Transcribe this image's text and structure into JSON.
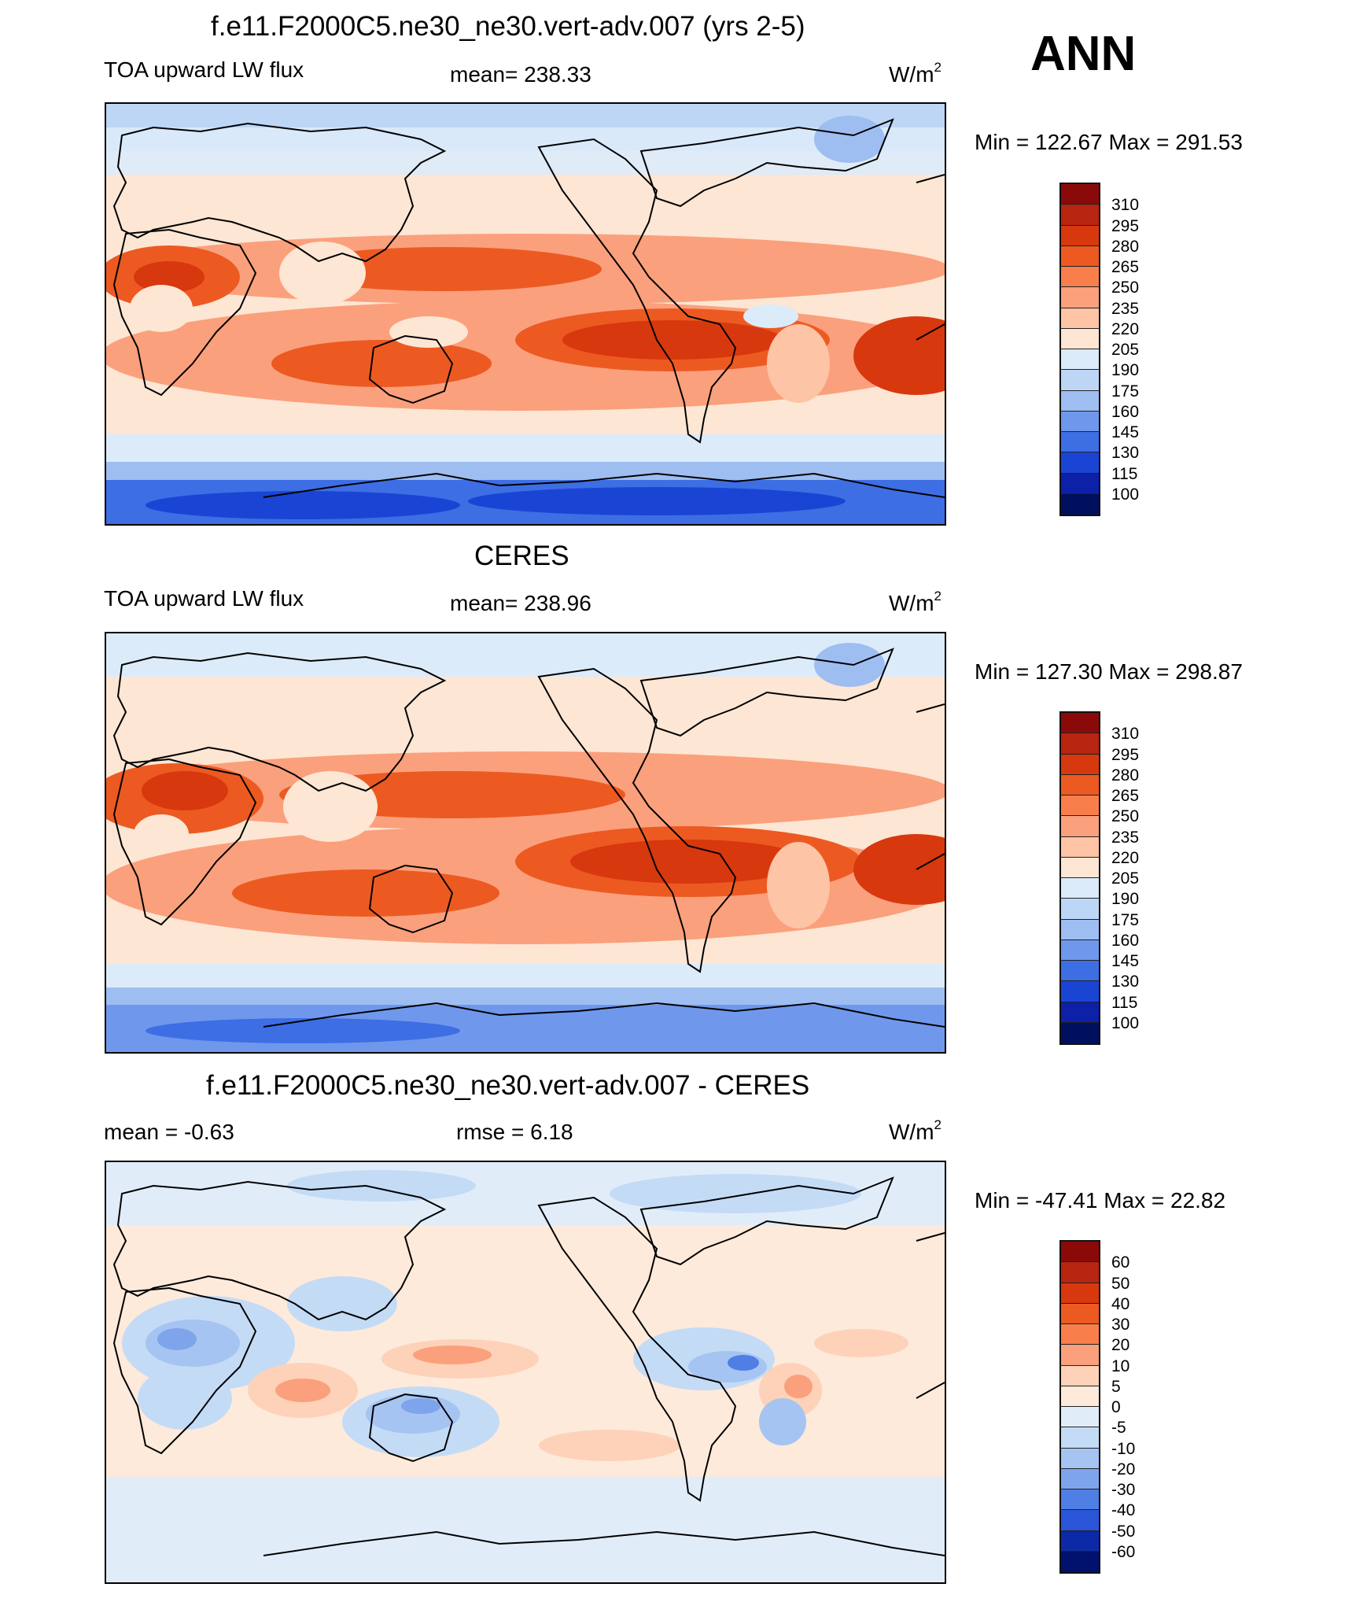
{
  "big_label": "ANN",
  "unit_text": "W/m",
  "unit_sup": "2",
  "panels": [
    {
      "title": "f.e11.F2000C5.ne30_ne30.vert-adv.007 (yrs 2-5)",
      "left_label": "TOA upward LW flux",
      "center_label": "mean= 238.33",
      "minmax": "Min = 122.67 Max = 291.53",
      "levels": [
        "310",
        "295",
        "280",
        "265",
        "250",
        "235",
        "220",
        "205",
        "190",
        "175",
        "160",
        "145",
        "130",
        "115",
        "100"
      ]
    },
    {
      "title": "CERES",
      "left_label": "TOA upward LW flux",
      "center_label": "mean= 238.96",
      "minmax": "Min = 127.30 Max = 298.87",
      "levels": [
        "310",
        "295",
        "280",
        "265",
        "250",
        "235",
        "220",
        "205",
        "190",
        "175",
        "160",
        "145",
        "130",
        "115",
        "100"
      ]
    },
    {
      "title": "f.e11.F2000C5.ne30_ne30.vert-adv.007 - CERES",
      "left_label": "mean =  -0.63",
      "center_label": "rmse =   6.18",
      "minmax": "Min = -47.41 Max =  22.82",
      "levels": [
        "60",
        "50",
        "40",
        "30",
        "20",
        "10",
        "5",
        "0",
        "-5",
        "-10",
        "-20",
        "-30",
        "-40",
        "-50",
        "-60"
      ]
    }
  ],
  "colors": {
    "flux_scale": [
      "#8a0a0a",
      "#b82510",
      "#d8380e",
      "#ec5a22",
      "#f87e4c",
      "#fba07c",
      "#fdc4a6",
      "#fde6d4",
      "#dcebfa",
      "#bdd6f6",
      "#9ebef2",
      "#6f98ec",
      "#3d6ee4",
      "#1a45d4",
      "#0c20a8",
      "#00105e"
    ],
    "diff_scale": [
      "#8a0a0a",
      "#b82510",
      "#d8380e",
      "#ec5a22",
      "#f87e4c",
      "#fba07c",
      "#fdd2b8",
      "#fdeadb",
      "#e0edf9",
      "#c4dbf6",
      "#a6c4f1",
      "#7ea4ec",
      "#4f7ee4",
      "#2a55d8",
      "#0c2aa8",
      "#00126e"
    ],
    "land_outline": "#000000"
  }
}
